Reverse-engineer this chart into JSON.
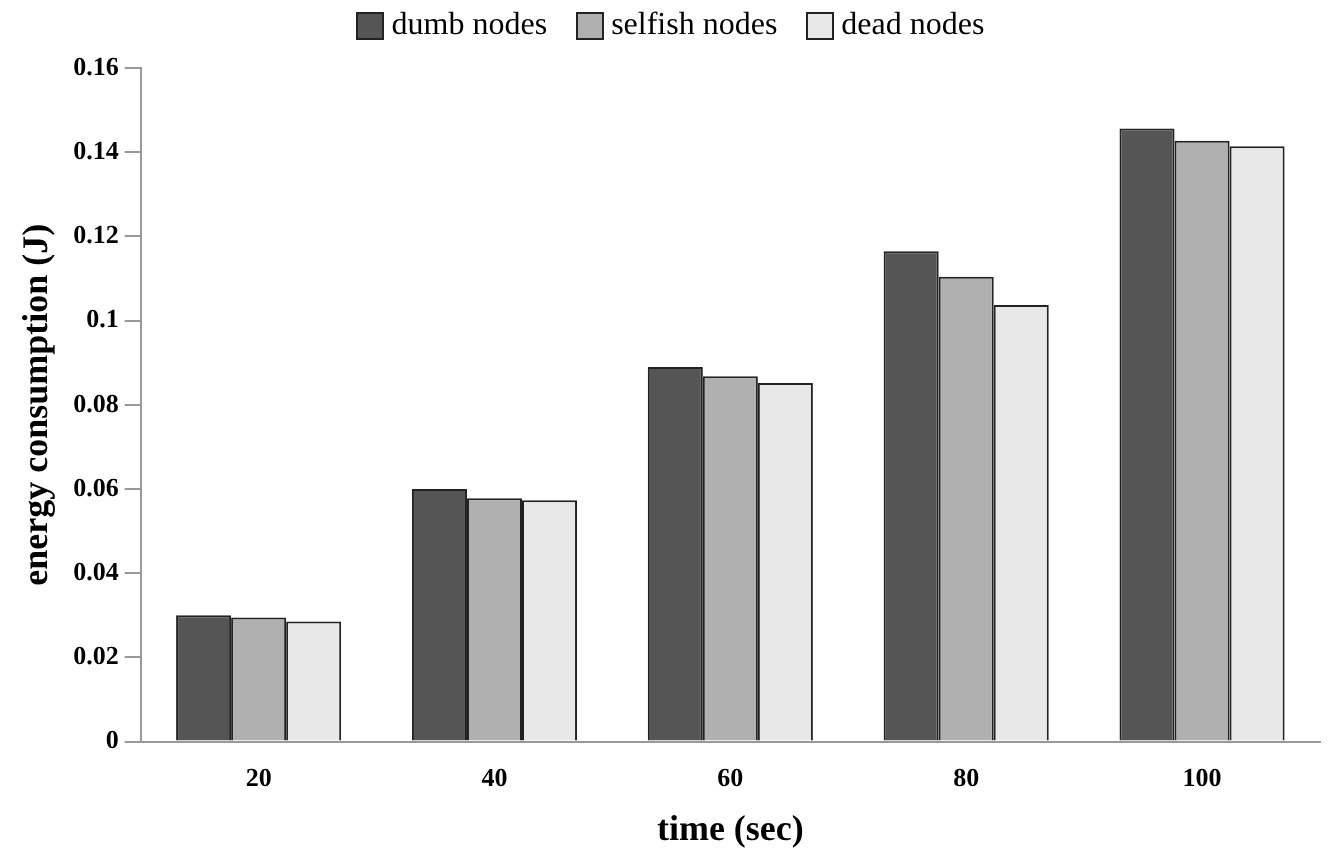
{
  "chart_data": {
    "type": "bar",
    "xlabel": "time (sec)",
    "ylabel": "energy consumption (J)",
    "categories": [
      "20",
      "40",
      "60",
      "80",
      "100"
    ],
    "series": [
      {
        "name": "dumb nodes",
        "color": "#555555",
        "values": [
          0.03,
          0.06,
          0.089,
          0.1165,
          0.1456
        ]
      },
      {
        "name": "selfish nodes",
        "color": "#b0b0b0",
        "values": [
          0.0295,
          0.0578,
          0.0868,
          0.1104,
          0.1427
        ]
      },
      {
        "name": "dead nodes",
        "color": "#e8e8e8",
        "values": [
          0.0285,
          0.0573,
          0.0852,
          0.1037,
          0.1414
        ]
      }
    ],
    "ylim": [
      0,
      0.16
    ],
    "yticks": [
      0,
      0.02,
      0.04,
      0.06,
      0.08,
      {
        "value": 0.1,
        "label": "0.1"
      },
      0.12,
      0.14,
      0.16
    ],
    "grid": false,
    "legend": "top"
  }
}
